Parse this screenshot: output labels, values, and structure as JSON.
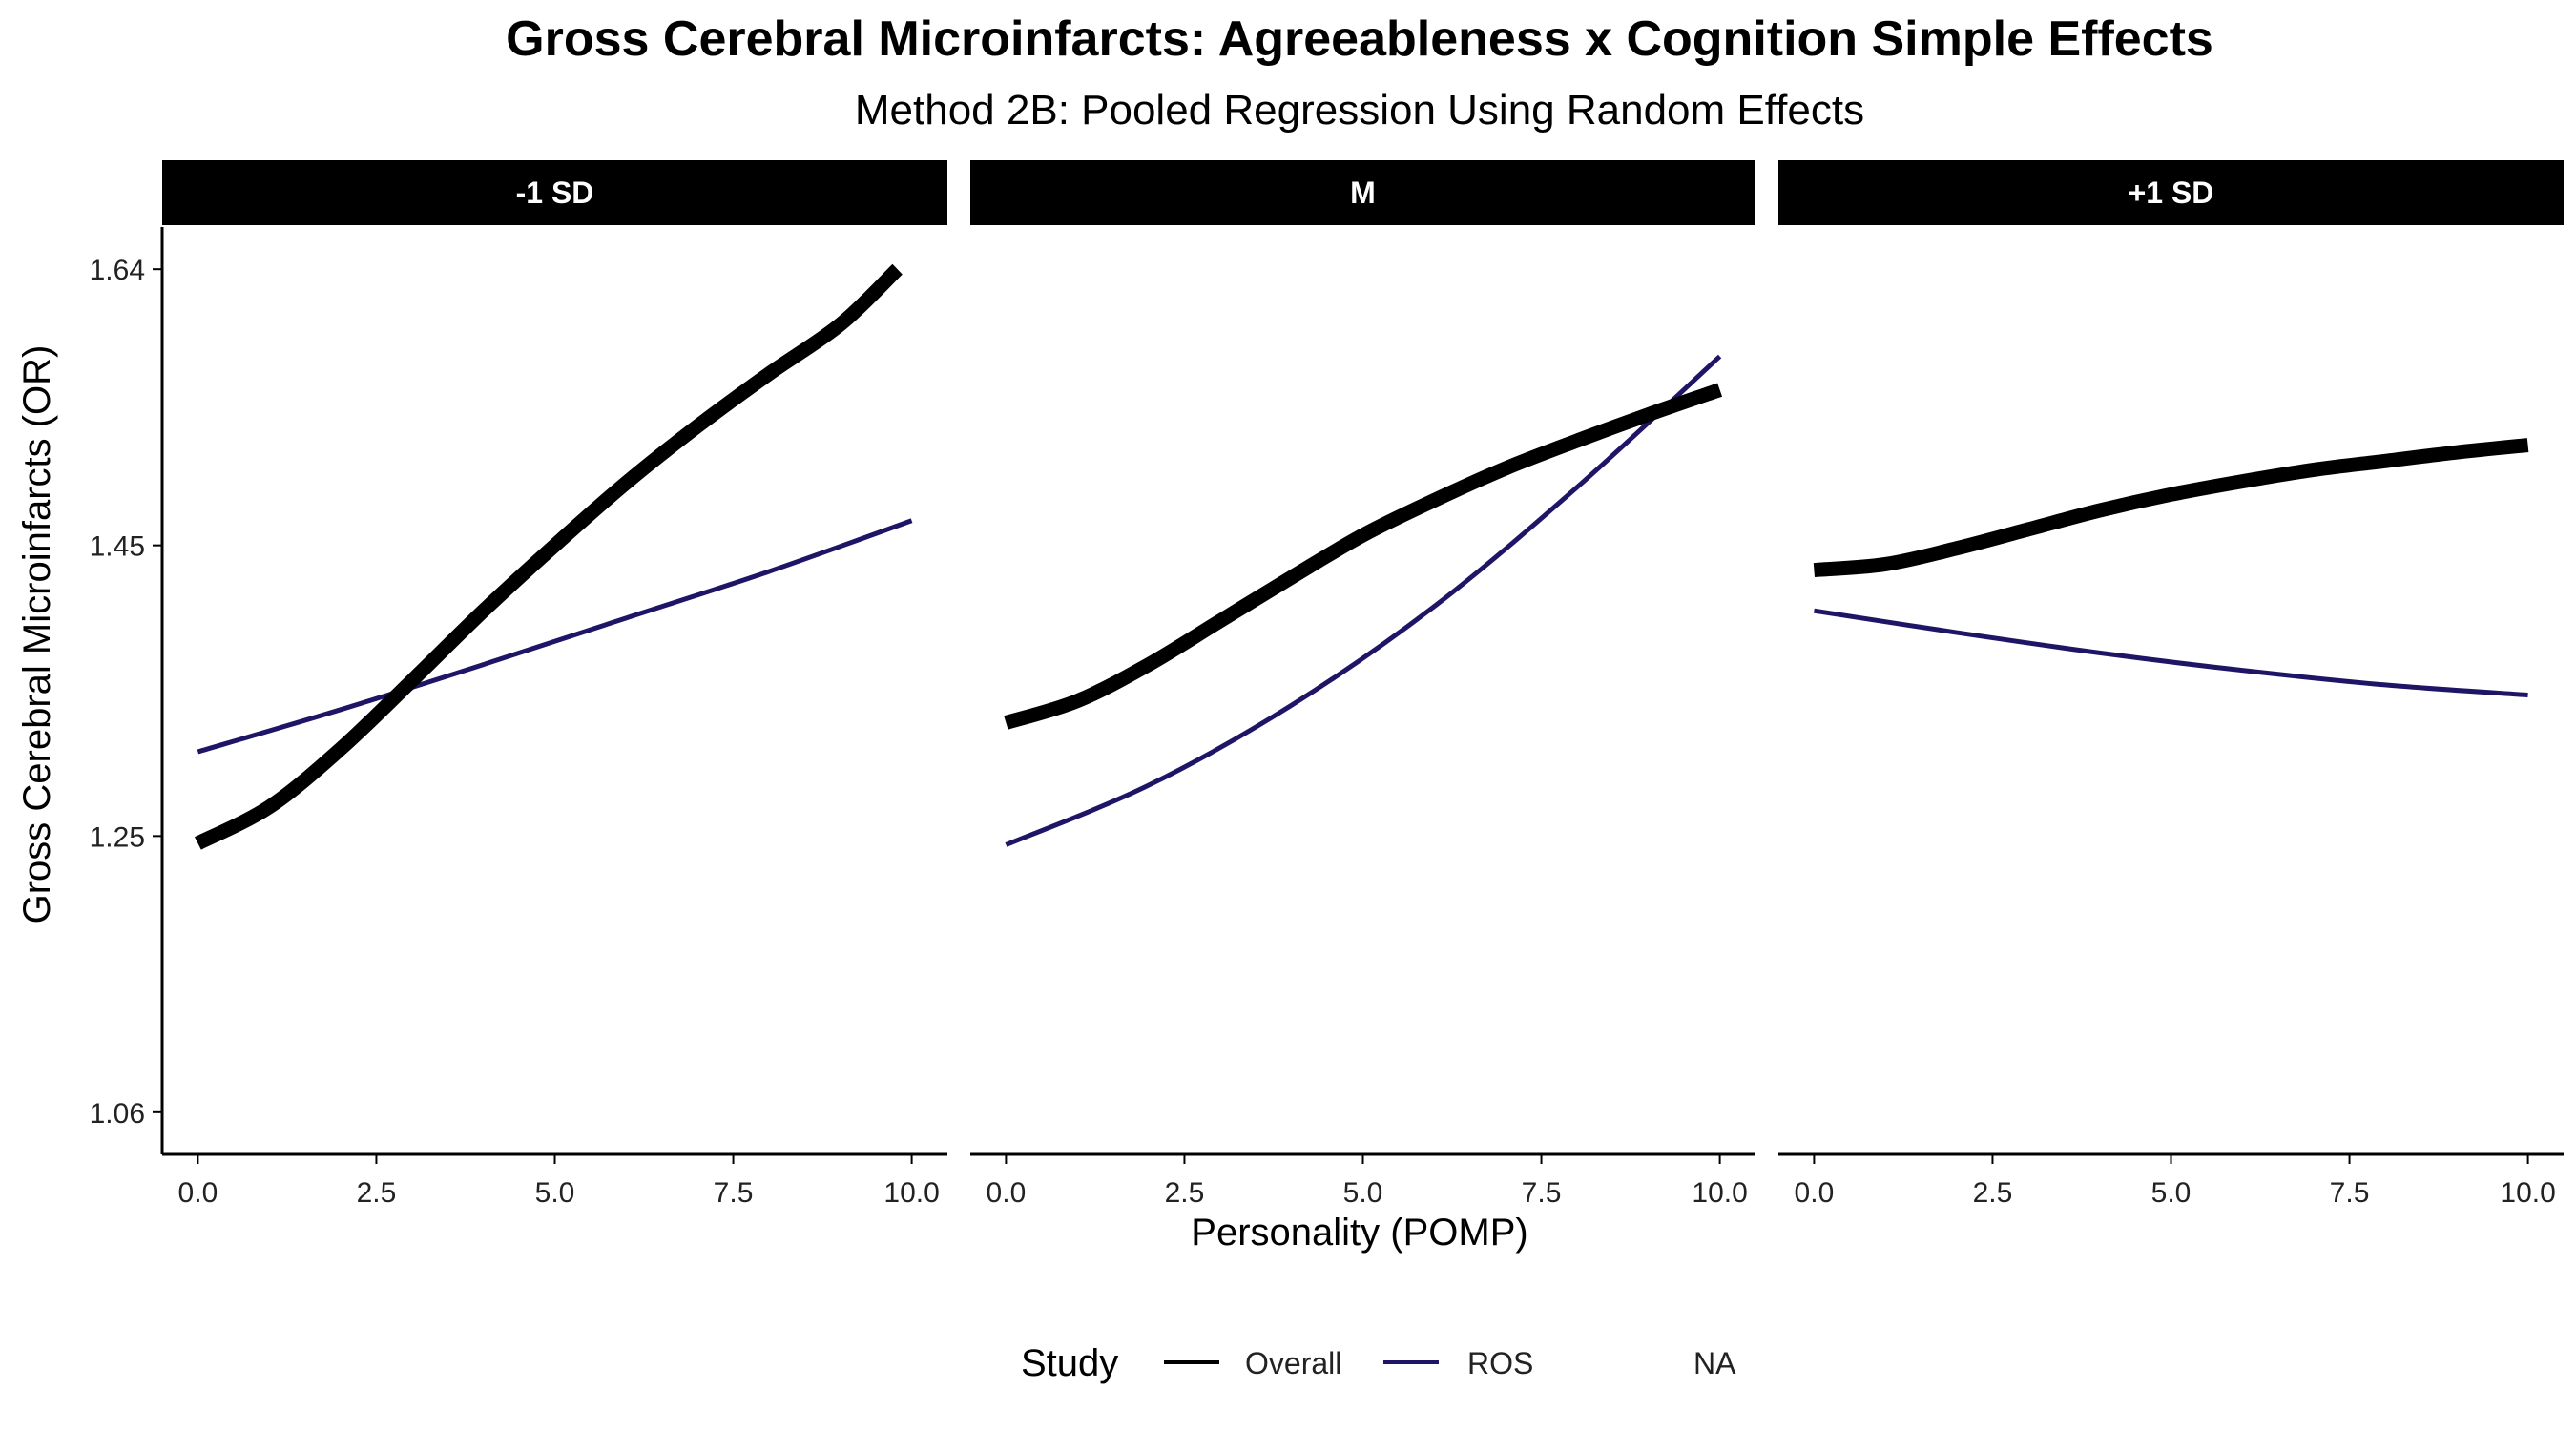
{
  "chart_data": {
    "type": "line",
    "title": "Gross Cerebral Microinfarcts: Agreeableness x Cognition Simple Effects",
    "subtitle": "Method 2B: Pooled Regression Using Random Effects",
    "xlabel": "Personality (POMP)",
    "ylabel": "Gross Cerebral Microinfarcts (OR)",
    "x_ticks": [
      0,
      2.5,
      5,
      7.5,
      10
    ],
    "x_tick_labels": [
      "0.0",
      "2.5",
      "5.0",
      "7.5",
      "10.0"
    ],
    "xlim": [
      -0.5,
      10.5
    ],
    "y_ticks": [
      1.06,
      1.25,
      1.45,
      1.64
    ],
    "y_tick_labels": [
      "1.06",
      "1.25",
      "1.45",
      "1.64"
    ],
    "ylim": [
      1.031,
      1.669
    ],
    "grid": false,
    "legend": {
      "title": "Study",
      "position": "bottom",
      "entries": [
        {
          "label": "Overall",
          "color": "#000000"
        },
        {
          "label": "ROS",
          "color": "#1f1566"
        },
        {
          "label": "NA",
          "color": null
        }
      ]
    },
    "panels": [
      {
        "label": "-1 SD",
        "series": [
          {
            "name": "Overall",
            "color": "#000000",
            "x": [
              0,
              1,
              2,
              3,
              4,
              5,
              6,
              7,
              8,
              9,
              9.8
            ],
            "y": [
              1.245,
              1.27,
              1.31,
              1.357,
              1.405,
              1.45,
              1.493,
              1.532,
              1.568,
              1.602,
              1.64
            ]
          },
          {
            "name": "ROS",
            "color": "#1f1566",
            "x": [
              0,
              2,
              4,
              6,
              8,
              10
            ],
            "y": [
              1.308,
              1.337,
              1.368,
              1.4,
              1.432,
              1.467
            ]
          }
        ]
      },
      {
        "label": "M",
        "series": [
          {
            "name": "Overall",
            "color": "#000000",
            "x": [
              0,
              1,
              2,
              3,
              4,
              5,
              6,
              7,
              8,
              9,
              10
            ],
            "y": [
              1.328,
              1.343,
              1.368,
              1.398,
              1.428,
              1.457,
              1.481,
              1.503,
              1.522,
              1.54,
              1.557
            ]
          },
          {
            "name": "ROS",
            "color": "#1f1566",
            "x": [
              0,
              2,
              4,
              6,
              8,
              10
            ],
            "y": [
              1.244,
              1.285,
              1.34,
              1.408,
              1.49,
              1.58
            ]
          }
        ]
      },
      {
        "label": "+1 SD",
        "series": [
          {
            "name": "Overall",
            "color": "#000000",
            "x": [
              0,
              1,
              2,
              3,
              4,
              5,
              6,
              7,
              8,
              9,
              10
            ],
            "y": [
              1.433,
              1.437,
              1.448,
              1.461,
              1.474,
              1.485,
              1.494,
              1.502,
              1.508,
              1.514,
              1.519
            ]
          },
          {
            "name": "ROS",
            "color": "#1f1566",
            "x": [
              0,
              2,
              4,
              6,
              8,
              10
            ],
            "y": [
              1.405,
              1.39,
              1.376,
              1.364,
              1.354,
              1.347
            ]
          }
        ]
      }
    ]
  }
}
